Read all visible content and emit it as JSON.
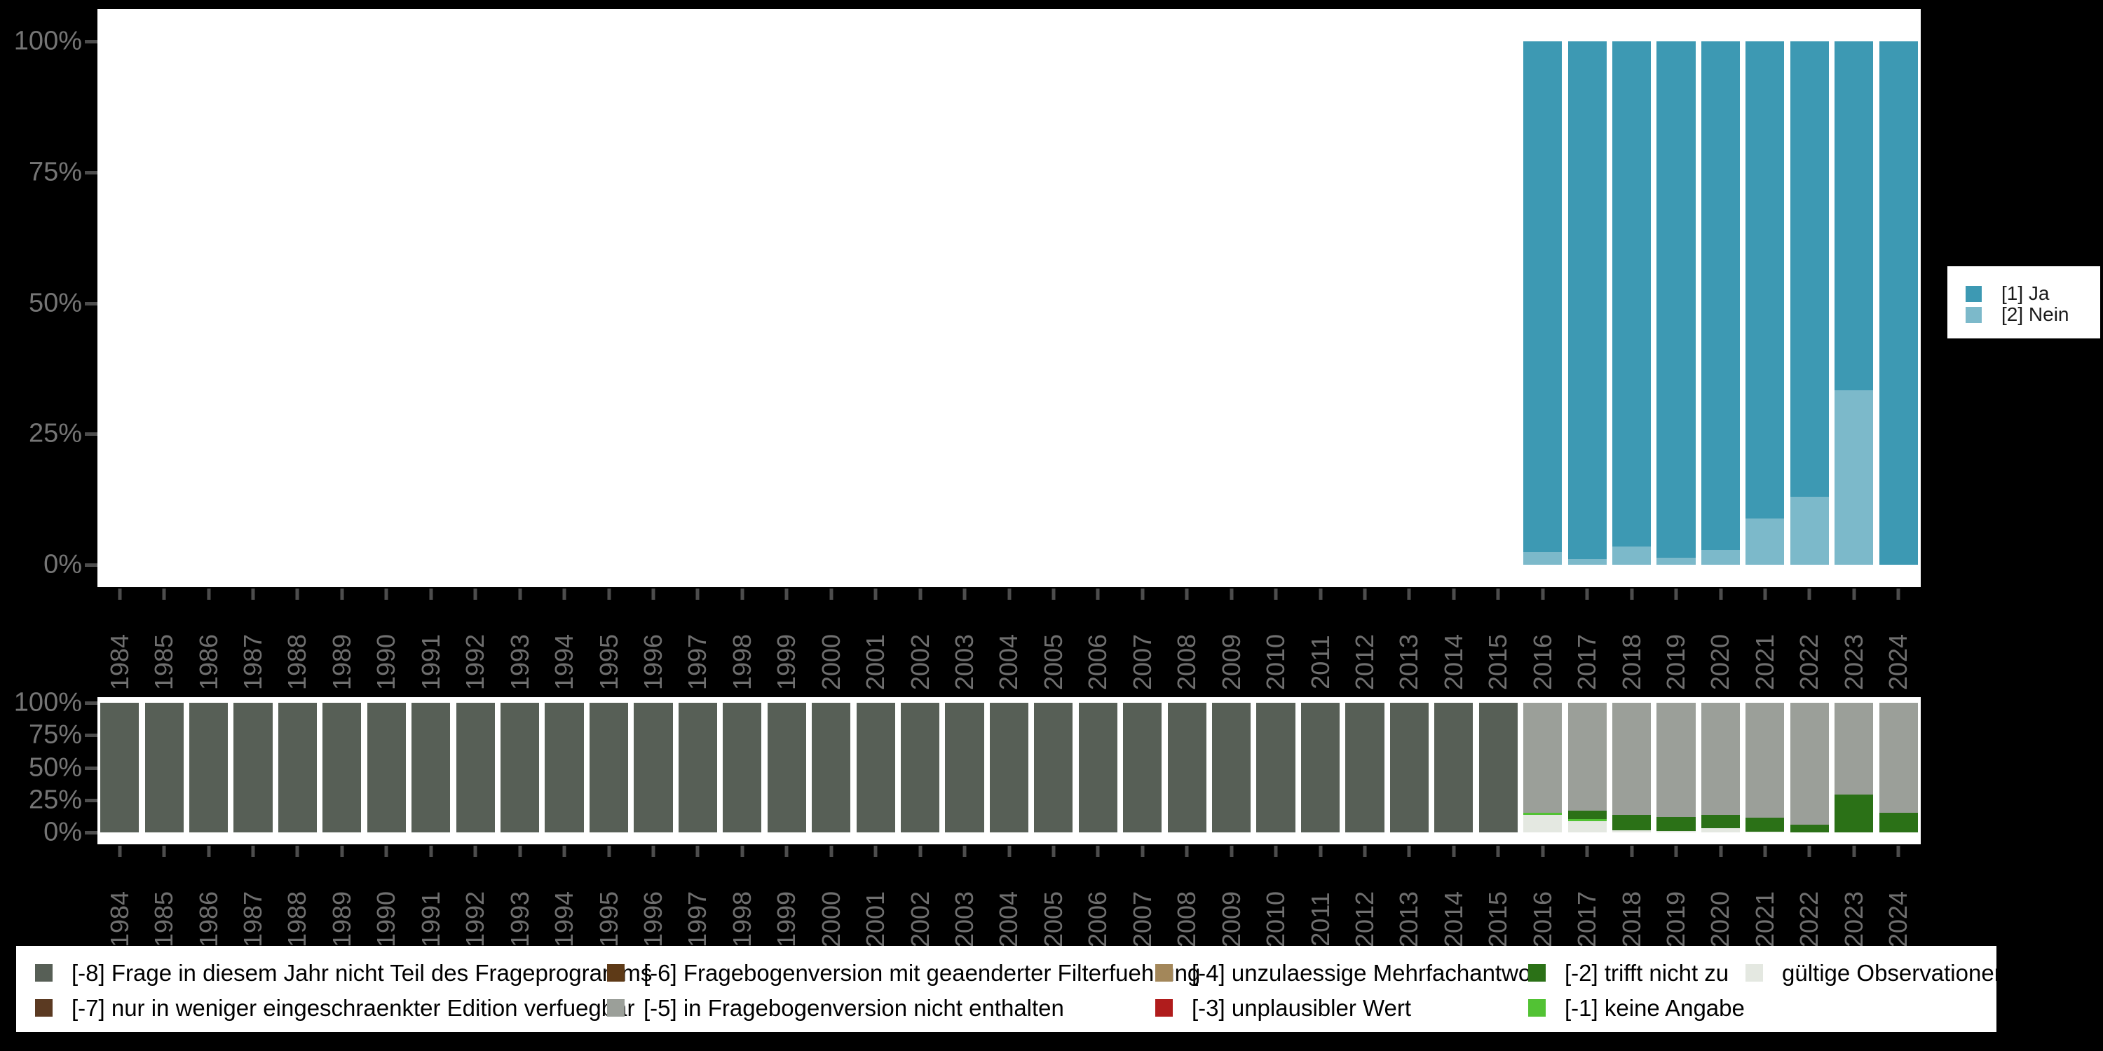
{
  "colors": {
    "ja": "#3d99b3",
    "nein": "#7cb9ca",
    "m8": "#575f56",
    "m7": "#5b3a22",
    "m6": "#5e3a17",
    "m5": "#9b9f99",
    "m4": "#a3875a",
    "m3": "#b01c1c",
    "m2": "#2b7117",
    "m1": "#52c234",
    "valid": "#e4e8e1",
    "plot_background": "#ffffff",
    "page_background": "#000000",
    "axis_label": "#757575",
    "tick_mark": "#4d4d4d"
  },
  "legend_top": {
    "items": [
      {
        "label": "[1] Ja",
        "color": "#3d99b3"
      },
      {
        "label": "[2] Nein",
        "color": "#7cb9ca"
      }
    ]
  },
  "legend_bottom": {
    "items": [
      {
        "label": "[-8] Frage in diesem Jahr nicht Teil des Frageprogramms",
        "color": "#575f56"
      },
      {
        "label": "[-7] nur in weniger eingeschraenkter Edition verfuegbar",
        "color": "#5b3a22"
      },
      {
        "label": "[-6] Fragebogenversion mit geaenderter Filterfuehrung",
        "color": "#5e3a17"
      },
      {
        "label": "[-5] in Fragebogenversion nicht enthalten",
        "color": "#9b9f99"
      },
      {
        "label": "[-4] unzulaessige Mehrfachantwort",
        "color": "#a3875a"
      },
      {
        "label": "[-3] unplausibler Wert",
        "color": "#b01c1c"
      },
      {
        "label": "[-2] trifft nicht zu",
        "color": "#2b7117"
      },
      {
        "label": "[-1] keine Angabe",
        "color": "#52c234"
      },
      {
        "label": "gültige Observationen",
        "color": "#e4e8e1"
      }
    ]
  },
  "chart_data": [
    {
      "type": "bar",
      "stacked": true,
      "unit": "percent",
      "title": "",
      "xlabel": "",
      "ylabel": "",
      "ylim": [
        0,
        100
      ],
      "y_ticks": [
        "0%",
        "25%",
        "50%",
        "75%",
        "100%"
      ],
      "grid": false,
      "legend_position": "right",
      "categories": [
        "1984",
        "1985",
        "1986",
        "1987",
        "1988",
        "1989",
        "1990",
        "1991",
        "1992",
        "1993",
        "1994",
        "1995",
        "1996",
        "1997",
        "1998",
        "1999",
        "2000",
        "2001",
        "2002",
        "2003",
        "2004",
        "2005",
        "2006",
        "2007",
        "2008",
        "2009",
        "2010",
        "2011",
        "2012",
        "2013",
        "2014",
        "2015",
        "2016",
        "2017",
        "2018",
        "2019",
        "2020",
        "2021",
        "2022",
        "2023",
        "2024"
      ],
      "series": [
        {
          "name": "[1] Ja",
          "color": "#3d99b3",
          "values": [
            0,
            0,
            0,
            0,
            0,
            0,
            0,
            0,
            0,
            0,
            0,
            0,
            0,
            0,
            0,
            0,
            0,
            0,
            0,
            0,
            0,
            0,
            0,
            0,
            0,
            0,
            0,
            0,
            0,
            0,
            0,
            0,
            97.6,
            98.9,
            96.5,
            98.7,
            97.2,
            91.2,
            87.0,
            66.7,
            100
          ]
        },
        {
          "name": "[2] Nein",
          "color": "#7cb9ca",
          "values": [
            0,
            0,
            0,
            0,
            0,
            0,
            0,
            0,
            0,
            0,
            0,
            0,
            0,
            0,
            0,
            0,
            0,
            0,
            0,
            0,
            0,
            0,
            0,
            0,
            0,
            0,
            0,
            0,
            0,
            0,
            0,
            0,
            2.4,
            1.1,
            3.5,
            1.3,
            2.8,
            8.8,
            13.0,
            33.3,
            0
          ]
        }
      ]
    },
    {
      "type": "bar",
      "stacked": true,
      "unit": "percent",
      "title": "",
      "xlabel": "",
      "ylabel": "",
      "ylim": [
        0,
        100
      ],
      "y_ticks": [
        "0%",
        "25%",
        "50%",
        "75%",
        "100%"
      ],
      "grid": false,
      "legend_position": "bottom",
      "categories": [
        "1984",
        "1985",
        "1986",
        "1987",
        "1988",
        "1989",
        "1990",
        "1991",
        "1992",
        "1993",
        "1994",
        "1995",
        "1996",
        "1997",
        "1998",
        "1999",
        "2000",
        "2001",
        "2002",
        "2003",
        "2004",
        "2005",
        "2006",
        "2007",
        "2008",
        "2009",
        "2010",
        "2011",
        "2012",
        "2013",
        "2014",
        "2015",
        "2016",
        "2017",
        "2018",
        "2019",
        "2020",
        "2021",
        "2022",
        "2023",
        "2024"
      ],
      "series": [
        {
          "name": "[-8] Frage in diesem Jahr nicht Teil des Frageprogramms",
          "color": "#575f56",
          "values": [
            100,
            100,
            100,
            100,
            100,
            100,
            100,
            100,
            100,
            100,
            100,
            100,
            100,
            100,
            100,
            100,
            100,
            100,
            100,
            100,
            100,
            100,
            100,
            100,
            100,
            100,
            100,
            100,
            100,
            100,
            100,
            100,
            0,
            0,
            0,
            0,
            0,
            0,
            0,
            0,
            0
          ]
        },
        {
          "name": "[-5] in Fragebogenversion nicht enthalten",
          "color": "#9b9f99",
          "values": [
            0,
            0,
            0,
            0,
            0,
            0,
            0,
            0,
            0,
            0,
            0,
            0,
            0,
            0,
            0,
            0,
            0,
            0,
            0,
            0,
            0,
            0,
            0,
            0,
            0,
            0,
            0,
            0,
            0,
            0,
            0,
            0,
            85.0,
            83.2,
            86.5,
            88.1,
            86.5,
            88.6,
            94.0,
            70.8,
            84.9
          ]
        },
        {
          "name": "[-2] trifft nicht zu",
          "color": "#2b7117",
          "values": [
            0,
            0,
            0,
            0,
            0,
            0,
            0,
            0,
            0,
            0,
            0,
            0,
            0,
            0,
            0,
            0,
            0,
            0,
            0,
            0,
            0,
            0,
            0,
            0,
            0,
            0,
            0,
            0,
            0,
            0,
            0,
            0,
            0,
            6.5,
            12.1,
            10.8,
            10.5,
            10.6,
            6.0,
            29.2,
            15.1
          ]
        },
        {
          "name": "[-1] keine Angabe",
          "color": "#52c234",
          "values": [
            0,
            0,
            0,
            0,
            0,
            0,
            0,
            0,
            0,
            0,
            0,
            0,
            0,
            0,
            0,
            0,
            0,
            0,
            0,
            0,
            0,
            0,
            0,
            0,
            0,
            0,
            0,
            0,
            0,
            0,
            0,
            0,
            1.6,
            1.7,
            0,
            0,
            0,
            0,
            0,
            0,
            0
          ]
        },
        {
          "name": "gültige Observationen",
          "color": "#e4e8e1",
          "values": [
            0,
            0,
            0,
            0,
            0,
            0,
            0,
            0,
            0,
            0,
            0,
            0,
            0,
            0,
            0,
            0,
            0,
            0,
            0,
            0,
            0,
            0,
            0,
            0,
            0,
            0,
            0,
            0,
            0,
            0,
            0,
            0,
            13.4,
            8.6,
            1.4,
            1.1,
            3.0,
            0.8,
            0,
            0,
            0
          ]
        }
      ]
    }
  ]
}
